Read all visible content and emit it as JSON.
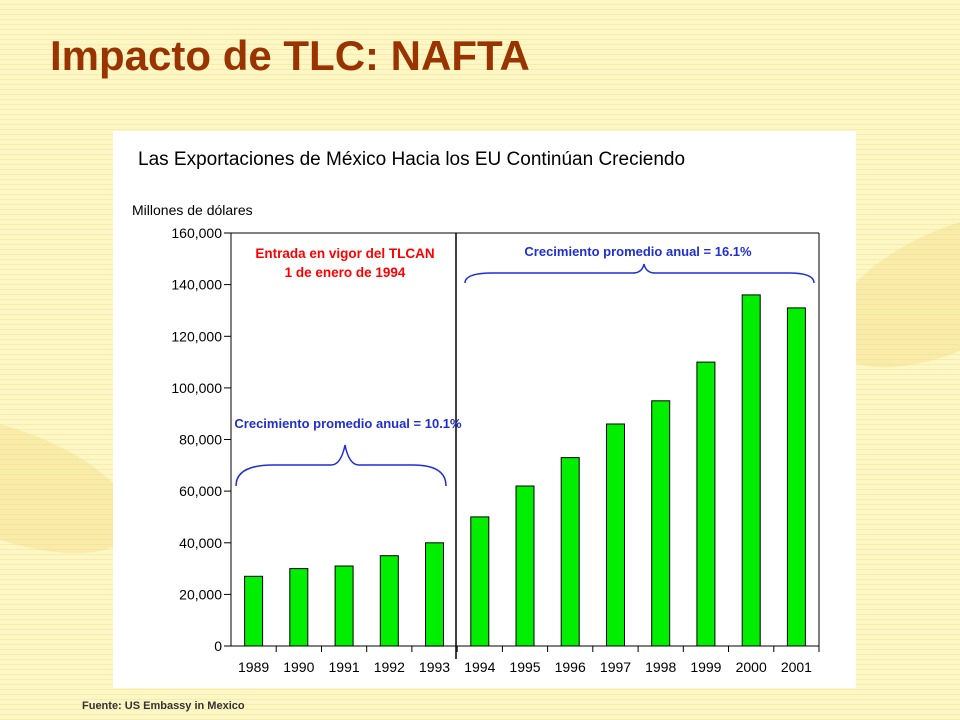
{
  "slide": {
    "title": "Impacto de TLC: NAFTA",
    "source": "Fuente: US Embassy in Mexico"
  },
  "colors": {
    "title": "#993300",
    "bar_fill": "#00ee00",
    "annotation_red": "#ff0000",
    "annotation_blue": "#1f2fd0"
  },
  "chart_data": {
    "type": "bar",
    "title": "Las Exportaciones de México Hacia los EU Continúan Creciendo",
    "ylabel": "Millones de dólares",
    "xlabel": "",
    "ylim": [
      0,
      160000
    ],
    "yticks": [
      0,
      20000,
      40000,
      60000,
      80000,
      100000,
      120000,
      140000,
      160000
    ],
    "ytick_labels": [
      "0",
      "20,000",
      "40,000",
      "60,000",
      "80,000",
      "100,000",
      "120,000",
      "140,000",
      "160,000"
    ],
    "categories": [
      "1989",
      "1990",
      "1991",
      "1992",
      "1993",
      "1994",
      "1995",
      "1996",
      "1997",
      "1998",
      "1999",
      "2000",
      "2001"
    ],
    "values": [
      27000,
      30000,
      31000,
      35000,
      40000,
      50000,
      62000,
      73000,
      86000,
      95000,
      110000,
      136000,
      131000
    ],
    "grid": false,
    "annotations": {
      "tlcan_line_1": "Entrada en vigor del TLCAN",
      "tlcan_line_2": "1 de enero de 1994",
      "growth_pre": "Crecimiento promedio anual = 10.1%",
      "growth_post": "Crecimiento promedio anual = 16.1%"
    }
  }
}
